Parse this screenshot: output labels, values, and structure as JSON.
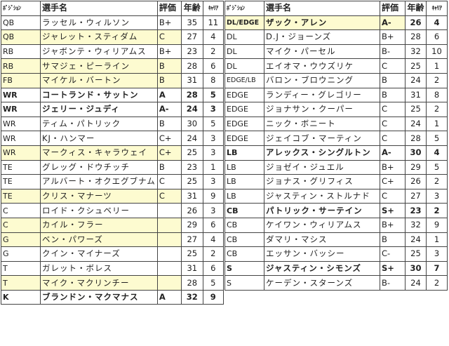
{
  "headers": {
    "position": "ﾎﾟｼﾞｼｮﾝ",
    "name": "選手名",
    "rating": "評価",
    "age": "年齢",
    "career": "ｷｬﾘｱ"
  },
  "highlight_color": "#fdfbd0",
  "left_table": [
    {
      "pos": "QB",
      "name": "ラッセル・ウィルソン",
      "rating": "B+",
      "age": "35",
      "career": "11",
      "highlight": false,
      "bold": false
    },
    {
      "pos": "QB",
      "name": "ジャレット・スティダム",
      "rating": "C",
      "age": "27",
      "career": "4",
      "highlight": true,
      "bold": false
    },
    {
      "pos": "RB",
      "name": "ジャボンテ・ウィリアムス",
      "rating": "B+",
      "age": "23",
      "career": "2",
      "highlight": false,
      "bold": false
    },
    {
      "pos": "RB",
      "name": "サマジェ・ピーライン",
      "rating": "B",
      "age": "28",
      "career": "6",
      "highlight": true,
      "bold": false
    },
    {
      "pos": "FB",
      "name": "マイケル・バートン",
      "rating": "B",
      "age": "31",
      "career": "8",
      "highlight": true,
      "bold": false
    },
    {
      "pos": "WR",
      "name": "コートランド・サットン",
      "rating": "A",
      "age": "28",
      "career": "5",
      "highlight": false,
      "bold": true
    },
    {
      "pos": "WR",
      "name": "ジェリー・ジュディ",
      "rating": "A-",
      "age": "24",
      "career": "3",
      "highlight": false,
      "bold": true
    },
    {
      "pos": "WR",
      "name": "ティム・パトリック",
      "rating": "B",
      "age": "30",
      "career": "5",
      "highlight": false,
      "bold": false
    },
    {
      "pos": "WR",
      "name": "KJ・ハンマー",
      "rating": "C+",
      "age": "24",
      "career": "3",
      "highlight": false,
      "bold": false
    },
    {
      "pos": "WR",
      "name": "マークィス・キャラウェイ",
      "rating": "C+",
      "age": "25",
      "career": "3",
      "highlight": true,
      "bold": false
    },
    {
      "pos": "TE",
      "name": "グレッグ・ドウチッチ",
      "rating": "B",
      "age": "23",
      "career": "1",
      "highlight": false,
      "bold": false
    },
    {
      "pos": "TE",
      "name": "アルバート・オクエグブナム",
      "rating": "C",
      "age": "25",
      "career": "3",
      "highlight": false,
      "bold": false
    },
    {
      "pos": "TE",
      "name": "クリス・マナーツ",
      "rating": "C",
      "age": "31",
      "career": "9",
      "highlight": true,
      "bold": false
    },
    {
      "pos": "C",
      "name": "ロイド・クシュベリー",
      "rating": "",
      "age": "26",
      "career": "3",
      "highlight": false,
      "bold": false
    },
    {
      "pos": "C",
      "name": "カイル・フラー",
      "rating": "",
      "age": "29",
      "career": "6",
      "highlight": true,
      "bold": false
    },
    {
      "pos": "G",
      "name": "ベン・パワーズ",
      "rating": "",
      "age": "27",
      "career": "4",
      "highlight": true,
      "bold": false
    },
    {
      "pos": "G",
      "name": "クイン・マイナーズ",
      "rating": "",
      "age": "25",
      "career": "2",
      "highlight": false,
      "bold": false
    },
    {
      "pos": "T",
      "name": "ガレット・ボレス",
      "rating": "",
      "age": "31",
      "career": "6",
      "highlight": false,
      "bold": false
    },
    {
      "pos": "T",
      "name": "マイク・マクリンチー",
      "rating": "",
      "age": "28",
      "career": "5",
      "highlight": true,
      "bold": false
    },
    {
      "pos": "K",
      "name": "ブランドン・マクマナス",
      "rating": "A",
      "age": "32",
      "career": "9",
      "highlight": false,
      "bold": true
    }
  ],
  "right_table": [
    {
      "pos": "DL/EDGE",
      "name": "ザック・アレン",
      "rating": "A-",
      "age": "26",
      "career": "4",
      "highlight": true,
      "bold": true
    },
    {
      "pos": "DL",
      "name": "D.J・ジョーンズ",
      "rating": "B+",
      "age": "28",
      "career": "6",
      "highlight": false,
      "bold": false
    },
    {
      "pos": "DL",
      "name": "マイク・パーセル",
      "rating": "B-",
      "age": "32",
      "career": "10",
      "highlight": false,
      "bold": false
    },
    {
      "pos": "DL",
      "name": "エイオマ・ウウズリケ",
      "rating": "C",
      "age": "25",
      "career": "1",
      "highlight": false,
      "bold": false
    },
    {
      "pos": "EDGE/LB",
      "name": "バロン・ブロウニング",
      "rating": "B",
      "age": "24",
      "career": "2",
      "highlight": false,
      "bold": false
    },
    {
      "pos": "EDGE",
      "name": "ランディー・グレゴリー",
      "rating": "B",
      "age": "31",
      "career": "8",
      "highlight": false,
      "bold": false
    },
    {
      "pos": "EDGE",
      "name": "ジョナサン・クーパー",
      "rating": "C",
      "age": "25",
      "career": "2",
      "highlight": false,
      "bold": false
    },
    {
      "pos": "EDGE",
      "name": "ニック・ボニート",
      "rating": "C",
      "age": "24",
      "career": "1",
      "highlight": false,
      "bold": false
    },
    {
      "pos": "EDGE",
      "name": "ジェイコブ・マーティン",
      "rating": "C",
      "age": "28",
      "career": "5",
      "highlight": false,
      "bold": false
    },
    {
      "pos": "LB",
      "name": "アレックス・シングルトン",
      "rating": "A-",
      "age": "30",
      "career": "4",
      "highlight": false,
      "bold": true
    },
    {
      "pos": "LB",
      "name": "ジョゼイ・ジュエル",
      "rating": "B+",
      "age": "29",
      "career": "5",
      "highlight": false,
      "bold": false
    },
    {
      "pos": "LB",
      "name": "ジョナス・グリフィス",
      "rating": "C+",
      "age": "26",
      "career": "2",
      "highlight": false,
      "bold": false
    },
    {
      "pos": "LB",
      "name": "ジャスティン・ストルナド",
      "rating": "C",
      "age": "27",
      "career": "3",
      "highlight": false,
      "bold": false
    },
    {
      "pos": "CB",
      "name": "パトリック・サーテイン",
      "rating": "S+",
      "age": "23",
      "career": "2",
      "highlight": false,
      "bold": true
    },
    {
      "pos": "CB",
      "name": "ケイワン・ウィリアムス",
      "rating": "B+",
      "age": "32",
      "career": "9",
      "highlight": false,
      "bold": false
    },
    {
      "pos": "CB",
      "name": "ダマリ・マシス",
      "rating": "B",
      "age": "24",
      "career": "1",
      "highlight": false,
      "bold": false
    },
    {
      "pos": "CB",
      "name": "エッサン・バッシー",
      "rating": "C-",
      "age": "25",
      "career": "3",
      "highlight": false,
      "bold": false
    },
    {
      "pos": "S",
      "name": "ジャスティン・シモンズ",
      "rating": "S+",
      "age": "30",
      "career": "7",
      "highlight": false,
      "bold": true
    },
    {
      "pos": "S",
      "name": "ケーデン・スターンズ",
      "rating": "B-",
      "age": "24",
      "career": "2",
      "highlight": false,
      "bold": false
    }
  ]
}
